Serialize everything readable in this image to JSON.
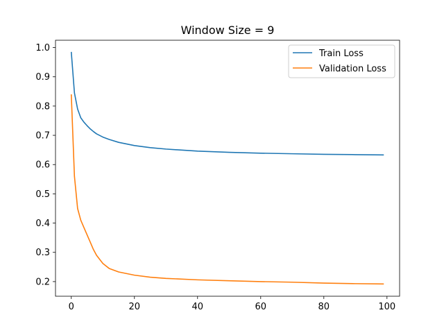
{
  "chart_data": {
    "type": "line",
    "title": "Window Size = 9",
    "xlabel": "",
    "ylabel": "",
    "xlim": [
      -5,
      104
    ],
    "ylim": [
      0.15,
      1.025
    ],
    "xticks": [
      0,
      20,
      40,
      60,
      80,
      100
    ],
    "yticks": [
      0.2,
      0.3,
      0.4,
      0.5,
      0.6,
      0.7,
      0.8,
      0.9,
      1.0
    ],
    "xtick_labels": [
      "0",
      "20",
      "40",
      "60",
      "80",
      "100"
    ],
    "ytick_labels": [
      "0.2",
      "0.3",
      "0.4",
      "0.5",
      "0.6",
      "0.7",
      "0.8",
      "0.9",
      "1.0"
    ],
    "grid": false,
    "legend_position": "top-right",
    "x": [
      0,
      1,
      2,
      3,
      4,
      5,
      6,
      7,
      8,
      10,
      12,
      15,
      20,
      25,
      30,
      40,
      50,
      60,
      70,
      80,
      90,
      99
    ],
    "series": [
      {
        "name": "Train Loss",
        "color": "#1f77b4",
        "values": [
          0.985,
          0.845,
          0.79,
          0.76,
          0.745,
          0.733,
          0.722,
          0.713,
          0.705,
          0.694,
          0.686,
          0.676,
          0.665,
          0.658,
          0.653,
          0.646,
          0.642,
          0.639,
          0.637,
          0.635,
          0.634,
          0.633
        ]
      },
      {
        "name": "Validation Loss",
        "color": "#ff7f0e",
        "values": [
          0.84,
          0.56,
          0.45,
          0.41,
          0.385,
          0.36,
          0.335,
          0.31,
          0.29,
          0.262,
          0.245,
          0.233,
          0.222,
          0.215,
          0.211,
          0.206,
          0.203,
          0.2,
          0.198,
          0.195,
          0.193,
          0.192
        ]
      }
    ]
  }
}
